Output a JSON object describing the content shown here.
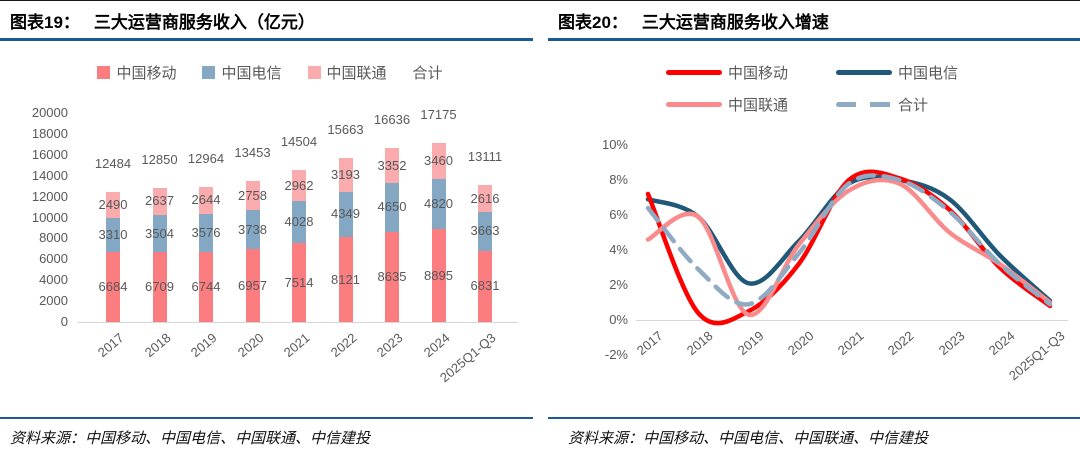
{
  "panels": [
    {
      "title_prefix": "图表19：",
      "title": "三大运营商服务收入（亿元）",
      "source_prefix": "资料来源：",
      "source": "中国移动、中国电信、中国联通、中信建投"
    },
    {
      "title_prefix": "图表20：",
      "title": "三大运营商服务收入增速",
      "source_prefix": "资料来源：",
      "source": "中国移动、中国电信、中国联通、中信建投"
    }
  ],
  "colors": {
    "rule_blue": "#1A5A96",
    "axis_gray": "#D6D6D6",
    "label_gray": "#595959",
    "bar_mobile": "#FC7D80",
    "bar_telecom": "#84A7C3",
    "bar_unicom": "#F9ABAD",
    "line_mobile": "#FE0000",
    "line_telecom": "#1F5878",
    "line_unicom": "#F98B8D",
    "line_total": "#8FAAC3"
  },
  "chart_data": [
    {
      "type": "bar",
      "stacked": true,
      "title": "三大运营商服务收入（亿元）",
      "categories": [
        "2017",
        "2018",
        "2019",
        "2020",
        "2021",
        "2022",
        "2023",
        "2024",
        "2025Q1-Q3"
      ],
      "series": [
        {
          "name": "中国移动",
          "color": "#FC7D80",
          "values": [
            6684,
            6709,
            6744,
            6957,
            7514,
            8121,
            8635,
            8895,
            6831
          ]
        },
        {
          "name": "中国电信",
          "color": "#84A7C3",
          "values": [
            3310,
            3504,
            3576,
            3738,
            4028,
            4349,
            4650,
            4820,
            3663
          ]
        },
        {
          "name": "中国联通",
          "color": "#F9ABAD",
          "values": [
            2490,
            2637,
            2644,
            2758,
            2962,
            3193,
            3352,
            3460,
            2616
          ]
        }
      ],
      "totals_name": "合计",
      "totals": [
        12484,
        12850,
        12964,
        13453,
        14504,
        15663,
        16636,
        17175,
        13111
      ],
      "ylabel": "",
      "xlabel": "",
      "ylim": [
        0,
        20000
      ],
      "ytick_step": 2000,
      "grid": false,
      "legend_position": "top"
    },
    {
      "type": "line",
      "smooth": true,
      "title": "三大运营商服务收入增速",
      "x": [
        "2017",
        "2018",
        "2019",
        "2020",
        "2021",
        "2022",
        "2023",
        "2024",
        "2025Q1-Q3"
      ],
      "series": [
        {
          "name": "中国移动",
          "color": "#FE0000",
          "dash": false,
          "values": [
            7.2,
            0.4,
            0.5,
            3.2,
            8.0,
            8.1,
            6.3,
            3.0,
            0.8
          ]
        },
        {
          "name": "中国电信",
          "color": "#1F5878",
          "dash": false,
          "values": [
            6.9,
            5.9,
            2.1,
            4.5,
            7.8,
            8.0,
            6.9,
            3.7,
            1.1
          ]
        },
        {
          "name": "中国联通",
          "color": "#F98B8D",
          "dash": false,
          "values": [
            4.6,
            5.9,
            0.3,
            4.3,
            7.4,
            7.8,
            5.0,
            3.2,
            1.0
          ]
        },
        {
          "name": "合计",
          "color": "#8FAAC3",
          "dash": true,
          "values": [
            6.4,
            2.9,
            0.9,
            3.8,
            7.8,
            8.0,
            6.2,
            3.2,
            0.9
          ]
        }
      ],
      "ylabel": "",
      "xlabel": "",
      "ylim": [
        -2,
        10
      ],
      "ytick_step": 2,
      "ytick_labels": [
        "10%",
        "8%",
        "6%",
        "4%",
        "2%",
        "0%",
        "-2%"
      ],
      "grid": false,
      "legend_position": "top"
    }
  ]
}
